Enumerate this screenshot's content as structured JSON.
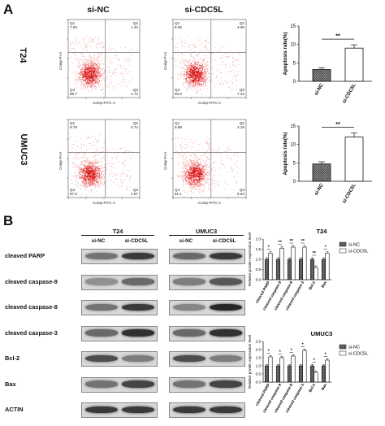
{
  "panel_a": {
    "letter": "A",
    "col_labels": [
      "si-NC",
      "si-CDC5L"
    ],
    "cell_lines": [
      "T24",
      "UMUC3"
    ],
    "flow_axis": {
      "y": "Comp-PI-A",
      "x": "Comp-FITC-A"
    },
    "flow_plots": [
      {
        "q1_name": "Q1",
        "q1": "7.63",
        "q2_name": "Q2",
        "q2": "1.34",
        "q3_name": "Q3",
        "q3": "1.72",
        "q4_name": "Q4",
        "q4": "89.7"
      },
      {
        "q1_name": "Q1",
        "q1": "5.56",
        "q2_name": "Q2",
        "q2": "3.96",
        "q3_name": "Q3",
        "q3": "7.43",
        "q4_name": "Q4",
        "q4": "83.0"
      },
      {
        "q1_name": "Q1",
        "q1": "9.79",
        "q2_name": "Q2",
        "q2": "0.74",
        "q3_name": "Q3",
        "q3": "1.87",
        "q4_name": "Q4",
        "q4": "87.6"
      },
      {
        "q1_name": "Q1",
        "q1": "9.88",
        "q2_name": "Q2",
        "q2": "3.18",
        "q3_name": "Q3",
        "q3": "5.84",
        "q4_name": "Q4",
        "q4": "81.1"
      }
    ]
  },
  "chart_data": [
    {
      "type": "bar",
      "panel": "A-T24",
      "categories": [
        "si-NC",
        "si-CDC5L"
      ],
      "values": [
        3.2,
        9.0
      ],
      "errors": [
        0.5,
        0.9
      ],
      "ylabel": "Apoptosis rate(%)",
      "ylim": [
        0,
        15
      ],
      "yticks": [
        "0",
        "5",
        "10",
        "15"
      ],
      "significance": "**"
    },
    {
      "type": "bar",
      "panel": "A-UMUC3",
      "categories": [
        "si-NC",
        "si-CDC5L"
      ],
      "values": [
        4.7,
        12.0
      ],
      "errors": [
        0.6,
        1.1
      ],
      "ylabel": "Apoptosis rate(%)",
      "ylim": [
        0,
        15
      ],
      "yticks": [
        "0",
        "5",
        "10",
        "15"
      ],
      "significance": "**"
    },
    {
      "type": "bar",
      "panel": "B-T24",
      "title": "T24",
      "ylabel": "Relative protein expression level",
      "ylim": [
        0,
        2.0
      ],
      "yticks": [
        "0.0",
        "0.5",
        "1.0",
        "1.5",
        "2.0"
      ],
      "categories": [
        "cleaved PARP",
        "cleaved caspase-9",
        "cleaved caspase-8",
        "cleaved caspase-3",
        "Bcl-2",
        "Bax"
      ],
      "series": [
        {
          "name": "si-NC",
          "values": [
            1.0,
            1.0,
            1.0,
            1.0,
            1.0,
            1.0
          ]
        },
        {
          "name": "si-CDC5L",
          "values": [
            1.3,
            1.55,
            1.6,
            1.6,
            0.6,
            1.3
          ]
        }
      ],
      "significance": [
        "*",
        "**",
        "**",
        "**",
        "**",
        "*"
      ],
      "legend": "top-right"
    },
    {
      "type": "bar",
      "panel": "B-UMUC3",
      "title": "UMUC3",
      "ylabel": "Relative protein expression level",
      "ylim": [
        0,
        2.5
      ],
      "yticks": [
        "0.0",
        "0.5",
        "1.0",
        "1.5",
        "2.0",
        "2.5"
      ],
      "categories": [
        "cleaved PARP",
        "cleaved caspase-9",
        "cleaved caspase-8",
        "cleaved caspase-3",
        "Bcl-2",
        "Bax"
      ],
      "series": [
        {
          "name": "si-NC",
          "values": [
            1.0,
            1.0,
            1.0,
            1.0,
            1.0,
            1.0
          ]
        },
        {
          "name": "si-CDC5L",
          "values": [
            1.55,
            1.5,
            1.6,
            1.95,
            0.6,
            1.35
          ]
        }
      ],
      "significance": [
        "*",
        "*",
        "*",
        "*",
        "*",
        "*"
      ],
      "legend": "top-right"
    }
  ],
  "panel_b": {
    "letter": "B",
    "groups": [
      "T24",
      "UMUC3"
    ],
    "lanes": [
      "si-NC",
      "si-CDC5L"
    ],
    "proteins": [
      "cleaved PARP",
      "cleaved caspase-9",
      "cleaved caspase-8",
      "cleaved caspase-3",
      "Bcl-2",
      "Bax",
      "ACTIN"
    ],
    "band_intensity_t24": [
      [
        0.5,
        0.8
      ],
      [
        0.35,
        0.55
      ],
      [
        0.5,
        0.8
      ],
      [
        0.55,
        0.85
      ],
      [
        0.7,
        0.45
      ],
      [
        0.5,
        0.75
      ],
      [
        0.8,
        0.8
      ]
    ],
    "band_intensity_umuc3": [
      [
        0.55,
        0.8
      ],
      [
        0.45,
        0.65
      ],
      [
        0.4,
        0.9
      ],
      [
        0.55,
        0.85
      ],
      [
        0.7,
        0.45
      ],
      [
        0.5,
        0.75
      ],
      [
        0.8,
        0.8
      ]
    ]
  }
}
